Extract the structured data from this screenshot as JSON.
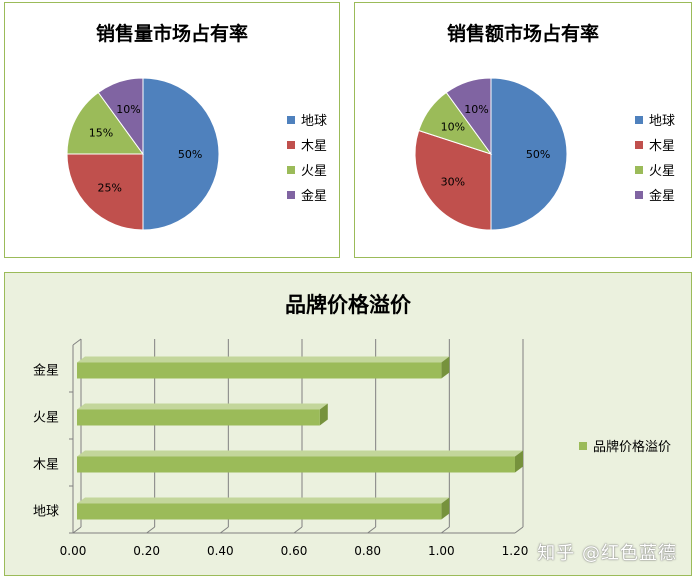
{
  "chart_data": [
    {
      "type": "pie",
      "title": "销售量市场占有率",
      "categories": [
        "地球",
        "木星",
        "火星",
        "金星"
      ],
      "values": [
        50,
        25,
        15,
        10
      ],
      "data_labels": [
        "50%",
        "25%",
        "15%",
        "10%"
      ],
      "colors": [
        "#4f81bd",
        "#c0504d",
        "#9bbb59",
        "#8064a2"
      ],
      "legend": "right"
    },
    {
      "type": "pie",
      "title": "销售额市场占有率",
      "categories": [
        "地球",
        "木星",
        "火星",
        "金星"
      ],
      "values": [
        50,
        30,
        10,
        10
      ],
      "data_labels": [
        "50%",
        "30%",
        "10%",
        "10%"
      ],
      "colors": [
        "#4f81bd",
        "#c0504d",
        "#9bbb59",
        "#8064a2"
      ],
      "legend": "right"
    },
    {
      "type": "bar",
      "orientation": "horizontal",
      "title": "品牌价格溢价",
      "categories": [
        "地球",
        "木星",
        "火星",
        "金星"
      ],
      "series": [
        {
          "name": "品牌价格溢价",
          "values": [
            1.0,
            1.2,
            0.67,
            1.0
          ]
        }
      ],
      "xlim": [
        0,
        1.2
      ],
      "xticks": [
        "0.00",
        "0.20",
        "0.40",
        "0.60",
        "0.80",
        "1.00",
        "1.20"
      ],
      "grid": true,
      "legend": "right",
      "color": "#9bbb59"
    }
  ],
  "watermark": "知乎 @红色蓝德"
}
